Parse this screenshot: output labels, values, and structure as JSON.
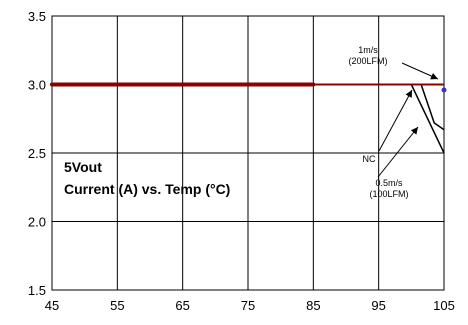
{
  "chart_data": {
    "type": "line",
    "title": "5Vout",
    "subtitle": "Current (A) vs. Temp (°C)",
    "xlabel": "",
    "ylabel": "",
    "xlim": [
      45,
      105
    ],
    "ylim": [
      1.5,
      3.5
    ],
    "x_ticks": [
      "45",
      "55",
      "65",
      "75",
      "85",
      "95",
      "105"
    ],
    "y_ticks": [
      "1.5",
      "2.0",
      "2.5",
      "3.0",
      "3.5"
    ],
    "grid": true,
    "legend": "none",
    "series": [
      {
        "name": "NC",
        "x": [
          45,
          100,
          105
        ],
        "y": [
          3.0,
          3.0,
          2.5
        ],
        "color": "#000000"
      },
      {
        "name": "0.5m/s (100LFM)",
        "x": [
          45,
          101.5,
          103.5,
          105
        ],
        "y": [
          3.0,
          3.0,
          2.72,
          2.67
        ],
        "color": "#000000"
      },
      {
        "name": "1m/s (200LFM)",
        "x": [
          45,
          105
        ],
        "y": [
          3.0,
          3.0
        ],
        "color": "#8b0000"
      }
    ],
    "annotations": [
      {
        "lines": [
          "1m/s",
          "(200LFM)"
        ]
      },
      {
        "lines": [
          "NC"
        ]
      },
      {
        "lines": [
          "0.5m/s",
          "(100LFM)"
        ]
      }
    ]
  }
}
